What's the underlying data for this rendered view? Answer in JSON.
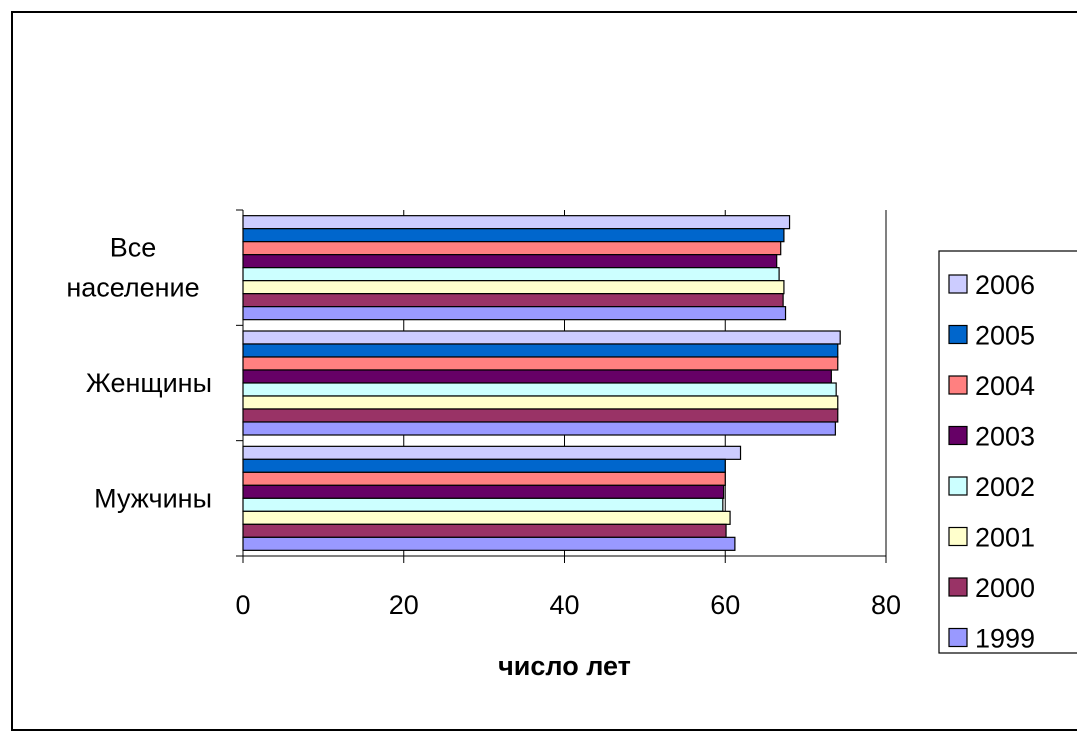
{
  "chart_data": {
    "type": "bar",
    "orientation": "horizontal",
    "title": "",
    "xlabel": "число лет",
    "ylabel": "",
    "xlim": [
      0,
      80
    ],
    "x_ticks": [
      0,
      20,
      40,
      60,
      80
    ],
    "grid": "vertical",
    "legend_position": "right",
    "categories": [
      "Все население",
      "Женщины",
      "Мужчины"
    ],
    "category_label_lines": [
      [
        "Все",
        "население"
      ],
      [
        "Женщины"
      ],
      [
        "Мужчины"
      ]
    ],
    "series": [
      {
        "name": "2006",
        "color": "#ccccff",
        "values": [
          68.0,
          74.3,
          61.9
        ]
      },
      {
        "name": "2005",
        "color": "#0066cc",
        "values": [
          67.3,
          74.0,
          60.0
        ]
      },
      {
        "name": "2004",
        "color": "#ff8080",
        "values": [
          66.9,
          74.0,
          60.0
        ]
      },
      {
        "name": "2003",
        "color": "#660066",
        "values": [
          66.4,
          73.2,
          59.8
        ]
      },
      {
        "name": "2002",
        "color": "#ccffff",
        "values": [
          66.7,
          73.8,
          59.7
        ]
      },
      {
        "name": "2001",
        "color": "#ffffcc",
        "values": [
          67.3,
          74.0,
          60.6
        ]
      },
      {
        "name": "2000",
        "color": "#993366",
        "values": [
          67.2,
          74.0,
          60.1
        ]
      },
      {
        "name": "1999",
        "color": "#9999ff",
        "values": [
          67.5,
          73.7,
          61.2
        ]
      }
    ]
  }
}
